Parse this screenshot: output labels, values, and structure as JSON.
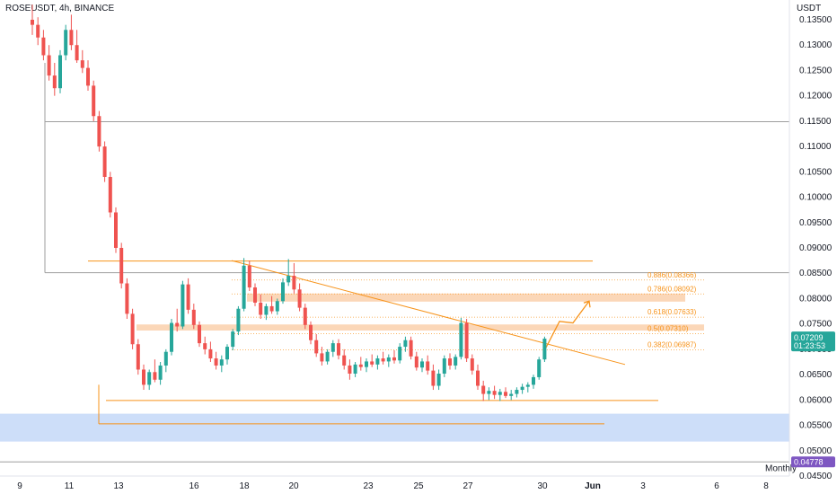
{
  "header": {
    "symbol": "ROSEUSDT, 4h, BINANCE",
    "currency": "USDT"
  },
  "colors": {
    "up": "#26a69a",
    "down": "#ef5350",
    "accent": "#f7931a",
    "zone": "#f9c9a0",
    "support_zone": "#c8daf8",
    "grid_line": "#9e9e9e",
    "price_badge": "#26a69a",
    "monthly_badge": "#7e57c2"
  },
  "price_badge": {
    "price": "0.07209",
    "countdown": "01:23:53"
  },
  "monthly_badge": {
    "label": "Monthly",
    "price": "0.04778"
  },
  "chart_data": {
    "type": "candlestick",
    "x_ticks": [
      "9",
      "11",
      "13",
      "16",
      "18",
      "20",
      "23",
      "25",
      "27",
      "30",
      "Jun",
      "3",
      "6",
      "8"
    ],
    "y_ticks": [
      "0.13500",
      "0.13000",
      "0.12500",
      "0.12000",
      "0.11500",
      "0.11000",
      "0.10500",
      "0.10000",
      "0.09500",
      "0.09000",
      "0.08500",
      "0.08000",
      "0.07500",
      "0.07000",
      "0.06500",
      "0.06000",
      "0.05500",
      "0.05000",
      "0.04500"
    ],
    "ylim": [
      0.0445,
      0.1375
    ],
    "fib_levels": [
      {
        "label": "0.886(0.08366)",
        "value": 0.08366
      },
      {
        "label": "0.786(0.08092)",
        "value": 0.08092
      },
      {
        "label": "0.618(0.07633)",
        "value": 0.07633
      },
      {
        "label": "0.5(0.07310)",
        "value": 0.0731
      },
      {
        "label": "0.382(0.06987)",
        "value": 0.06987
      }
    ],
    "horizontal_levels": [
      {
        "value": 0.1149,
        "style": "gray"
      },
      {
        "value": 0.0851,
        "style": "gray"
      },
      {
        "value": 0.0874,
        "style": "orange"
      },
      {
        "value": 0.0599,
        "style": "orange"
      },
      {
        "value": 0.0553,
        "style": "orange"
      },
      {
        "value": 0.0478,
        "style": "gray"
      }
    ],
    "zones": [
      {
        "from": 0.0794,
        "to": 0.081
      },
      {
        "from": 0.0737,
        "to": 0.0749
      },
      {
        "from": 0.0518,
        "to": 0.0573
      }
    ],
    "trendline": {
      "from": 0.0875,
      "to": 0.067
    },
    "projection": [
      0.07,
      0.0755,
      0.0752,
      0.0795
    ],
    "last_price": 0.07209,
    "candles": [
      [
        0.135,
        0.138,
        0.132,
        0.134
      ],
      [
        0.134,
        0.1355,
        0.13,
        0.1315
      ],
      [
        0.1315,
        0.133,
        0.127,
        0.128
      ],
      [
        0.128,
        0.13,
        0.123,
        0.124
      ],
      [
        0.124,
        0.1265,
        0.12,
        0.1215
      ],
      [
        0.1215,
        0.129,
        0.1205,
        0.128
      ],
      [
        0.128,
        0.134,
        0.127,
        0.133
      ],
      [
        0.133,
        0.136,
        0.129,
        0.13
      ],
      [
        0.13,
        0.133,
        0.1265,
        0.127
      ],
      [
        0.127,
        0.129,
        0.1245,
        0.1255
      ],
      [
        0.1255,
        0.127,
        0.121,
        0.122
      ],
      [
        0.122,
        0.123,
        0.115,
        0.116
      ],
      [
        0.116,
        0.117,
        0.109,
        0.11
      ],
      [
        0.11,
        0.111,
        0.103,
        0.104
      ],
      [
        0.104,
        0.105,
        0.096,
        0.097
      ],
      [
        0.097,
        0.098,
        0.089,
        0.09
      ],
      [
        0.09,
        0.091,
        0.082,
        0.083
      ],
      [
        0.083,
        0.084,
        0.076,
        0.077
      ],
      [
        0.077,
        0.078,
        0.07,
        0.071
      ],
      [
        0.071,
        0.072,
        0.065,
        0.066
      ],
      [
        0.066,
        0.067,
        0.062,
        0.063
      ],
      [
        0.063,
        0.066,
        0.062,
        0.0655
      ],
      [
        0.0655,
        0.068,
        0.0635,
        0.064
      ],
      [
        0.064,
        0.0675,
        0.063,
        0.0668
      ],
      [
        0.0668,
        0.07,
        0.0655,
        0.0695
      ],
      [
        0.0695,
        0.076,
        0.0688,
        0.0752
      ],
      [
        0.0752,
        0.078,
        0.0735,
        0.0745
      ],
      [
        0.0745,
        0.0835,
        0.074,
        0.0828
      ],
      [
        0.0828,
        0.084,
        0.077,
        0.0778
      ],
      [
        0.0778,
        0.079,
        0.074,
        0.0748
      ],
      [
        0.0748,
        0.0755,
        0.0705,
        0.0712
      ],
      [
        0.0712,
        0.0725,
        0.069,
        0.07
      ],
      [
        0.07,
        0.0715,
        0.0675,
        0.0682
      ],
      [
        0.0682,
        0.0695,
        0.066,
        0.0668
      ],
      [
        0.0668,
        0.0688,
        0.0655,
        0.068
      ],
      [
        0.068,
        0.071,
        0.067,
        0.0705
      ],
      [
        0.0705,
        0.074,
        0.0698,
        0.0735
      ],
      [
        0.0735,
        0.0785,
        0.0728,
        0.078
      ],
      [
        0.078,
        0.088,
        0.0775,
        0.0865
      ],
      [
        0.0865,
        0.0875,
        0.0815,
        0.0822
      ],
      [
        0.0822,
        0.083,
        0.0785,
        0.0792
      ],
      [
        0.0792,
        0.0808,
        0.076,
        0.0768
      ],
      [
        0.0768,
        0.079,
        0.0758,
        0.0785
      ],
      [
        0.0785,
        0.0805,
        0.077,
        0.0775
      ],
      [
        0.0775,
        0.08,
        0.0768,
        0.0795
      ],
      [
        0.0795,
        0.084,
        0.079,
        0.0832
      ],
      [
        0.0832,
        0.0878,
        0.0825,
        0.0845
      ],
      [
        0.0845,
        0.087,
        0.081,
        0.0818
      ],
      [
        0.0818,
        0.083,
        0.0775,
        0.0782
      ],
      [
        0.0782,
        0.079,
        0.074,
        0.0748
      ],
      [
        0.0748,
        0.0755,
        0.071,
        0.0718
      ],
      [
        0.0718,
        0.073,
        0.0685,
        0.0692
      ],
      [
        0.0692,
        0.0705,
        0.0668,
        0.0676
      ],
      [
        0.0676,
        0.07,
        0.067,
        0.0695
      ],
      [
        0.0695,
        0.0718,
        0.0685,
        0.0712
      ],
      [
        0.0712,
        0.072,
        0.068,
        0.0688
      ],
      [
        0.0688,
        0.07,
        0.066,
        0.0668
      ],
      [
        0.0668,
        0.068,
        0.064,
        0.0652
      ],
      [
        0.0652,
        0.0675,
        0.0645,
        0.067
      ],
      [
        0.067,
        0.0685,
        0.0658,
        0.0665
      ],
      [
        0.0665,
        0.0682,
        0.0655,
        0.0676
      ],
      [
        0.0676,
        0.069,
        0.0665,
        0.067
      ],
      [
        0.067,
        0.0688,
        0.066,
        0.0682
      ],
      [
        0.0682,
        0.0695,
        0.067,
        0.0676
      ],
      [
        0.0676,
        0.069,
        0.0665,
        0.0684
      ],
      [
        0.0684,
        0.0698,
        0.0672,
        0.0678
      ],
      [
        0.0678,
        0.0712,
        0.0672,
        0.0705
      ],
      [
        0.0705,
        0.0725,
        0.0695,
        0.0718
      ],
      [
        0.0718,
        0.0725,
        0.068,
        0.0686
      ],
      [
        0.0686,
        0.0695,
        0.0658,
        0.0664
      ],
      [
        0.0664,
        0.0682,
        0.0655,
        0.0676
      ],
      [
        0.0676,
        0.0688,
        0.065,
        0.0658
      ],
      [
        0.0658,
        0.067,
        0.062,
        0.0628
      ],
      [
        0.0628,
        0.066,
        0.062,
        0.0652
      ],
      [
        0.0652,
        0.0688,
        0.0645,
        0.0682
      ],
      [
        0.0682,
        0.0692,
        0.066,
        0.0668
      ],
      [
        0.0668,
        0.069,
        0.066,
        0.0685
      ],
      [
        0.0685,
        0.0762,
        0.068,
        0.0752
      ],
      [
        0.0752,
        0.076,
        0.0675,
        0.0682
      ],
      [
        0.0682,
        0.069,
        0.065,
        0.0658
      ],
      [
        0.0658,
        0.067,
        0.062,
        0.0628
      ],
      [
        0.0628,
        0.0638,
        0.0598,
        0.0612
      ],
      [
        0.0612,
        0.0625,
        0.06,
        0.0618
      ],
      [
        0.0618,
        0.0628,
        0.0602,
        0.061
      ],
      [
        0.061,
        0.0622,
        0.0598,
        0.0616
      ],
      [
        0.0616,
        0.0625,
        0.0604,
        0.0608
      ],
      [
        0.0608,
        0.062,
        0.06,
        0.0612
      ],
      [
        0.0612,
        0.0625,
        0.0605,
        0.062
      ],
      [
        0.062,
        0.0632,
        0.0612,
        0.0626
      ],
      [
        0.0626,
        0.0635,
        0.0615,
        0.063
      ],
      [
        0.063,
        0.065,
        0.0622,
        0.0645
      ],
      [
        0.0645,
        0.0685,
        0.064,
        0.068
      ],
      [
        0.068,
        0.0725,
        0.0675,
        0.0721
      ]
    ]
  }
}
